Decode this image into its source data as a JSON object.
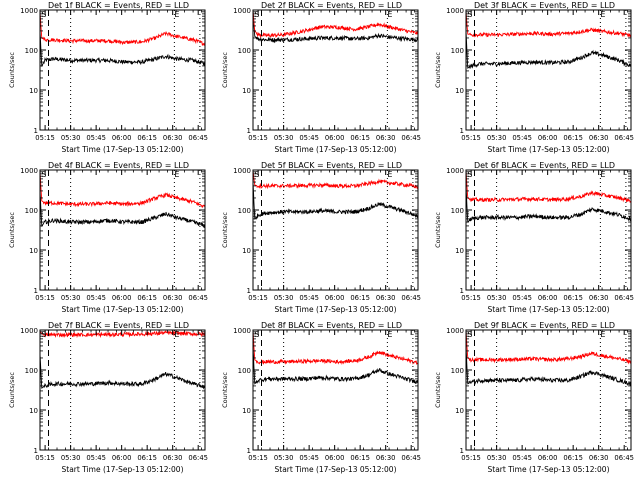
{
  "figure": {
    "common": {
      "type": "line",
      "xlabel": "Start Time (17-Sep-13 05:12:00)",
      "ylabel": "Counts/sec",
      "y_scale": "log",
      "ylim": [
        1,
        1000
      ],
      "y_ticks": [
        1,
        10,
        100,
        1000
      ],
      "y_tick_labels": [
        "1",
        "10",
        "100",
        "1000"
      ],
      "x_tick_labels": [
        "05:15",
        "05:30",
        "05:45",
        "06:00",
        "06:15",
        "06:30",
        "06:45"
      ],
      "x_minutes_ticks": [
        3,
        18,
        33,
        48,
        63,
        78,
        93
      ],
      "xlim_minutes": [
        0,
        97
      ],
      "dashed_vline_minute": 5,
      "dotted_vline_minutes": [
        18,
        79,
        94
      ],
      "marker_labels": [
        "S",
        "E"
      ],
      "marker_minutes": [
        0.8,
        79
      ],
      "colors": {
        "events": "#000000",
        "lld": "#ff0000",
        "axes": "#000000",
        "background": "#ffffff"
      }
    }
  },
  "chart_data": [
    {
      "type": "line",
      "title": "Det 1f BLACK = Events, RED = LLD",
      "xlabel": "Start Time (17-Sep-13 05:12:00)",
      "ylabel": "Counts/sec",
      "x_minutes": [
        0,
        1,
        3,
        8,
        18,
        30,
        40,
        50,
        60,
        68,
        74,
        80,
        90,
        97
      ],
      "series": [
        {
          "name": "Events",
          "color": "#000000",
          "values": [
            300,
            40,
            55,
            60,
            55,
            55,
            55,
            50,
            50,
            60,
            70,
            60,
            55,
            45
          ]
        },
        {
          "name": "LLD",
          "color": "#ff0000",
          "values": [
            900,
            200,
            180,
            180,
            170,
            170,
            170,
            155,
            160,
            200,
            260,
            220,
            180,
            140
          ]
        }
      ]
    },
    {
      "type": "line",
      "title": "Det 2f BLACK = Events, RED = LLD",
      "xlabel": "Start Time (17-Sep-13 05:12:00)",
      "ylabel": "Counts/sec",
      "x_minutes": [
        0,
        1,
        3,
        8,
        18,
        30,
        40,
        50,
        60,
        68,
        74,
        80,
        90,
        97
      ],
      "series": [
        {
          "name": "Events",
          "color": "#000000",
          "values": [
            900,
            220,
            190,
            180,
            180,
            190,
            200,
            200,
            190,
            200,
            230,
            210,
            190,
            180
          ]
        },
        {
          "name": "LLD",
          "color": "#ff0000",
          "values": [
            950,
            300,
            240,
            230,
            240,
            300,
            380,
            370,
            330,
            380,
            440,
            380,
            300,
            260
          ]
        }
      ]
    },
    {
      "type": "line",
      "title": "Det 3f BLACK = Events, RED = LLD",
      "xlabel": "Start Time (17-Sep-13 05:12:00)",
      "ylabel": "Counts/sec",
      "x_minutes": [
        0,
        1,
        3,
        8,
        18,
        30,
        40,
        50,
        60,
        68,
        74,
        80,
        90,
        97
      ],
      "series": [
        {
          "name": "Events",
          "color": "#000000",
          "values": [
            300,
            35,
            40,
            45,
            45,
            48,
            50,
            48,
            50,
            65,
            85,
            75,
            55,
            40
          ]
        },
        {
          "name": "LLD",
          "color": "#ff0000",
          "values": [
            900,
            250,
            240,
            240,
            240,
            250,
            260,
            250,
            260,
            290,
            320,
            290,
            260,
            230
          ]
        }
      ]
    },
    {
      "type": "line",
      "title": "Det 4f BLACK = Events, RED = LLD",
      "xlabel": "Start Time (17-Sep-13 05:12:00)",
      "ylabel": "Counts/sec",
      "x_minutes": [
        0,
        1,
        3,
        8,
        18,
        30,
        40,
        50,
        60,
        68,
        74,
        80,
        90,
        97
      ],
      "series": [
        {
          "name": "Events",
          "color": "#000000",
          "values": [
            300,
            40,
            50,
            55,
            50,
            50,
            55,
            50,
            50,
            65,
            80,
            65,
            50,
            40
          ]
        },
        {
          "name": "LLD",
          "color": "#ff0000",
          "values": [
            900,
            170,
            150,
            150,
            140,
            140,
            150,
            140,
            150,
            200,
            240,
            200,
            160,
            120
          ]
        }
      ]
    },
    {
      "type": "line",
      "title": "Det 5f BLACK = Events, RED = LLD",
      "xlabel": "Start Time (17-Sep-13 05:12:00)",
      "ylabel": "Counts/sec",
      "x_minutes": [
        0,
        1,
        3,
        8,
        18,
        30,
        40,
        50,
        60,
        68,
        74,
        80,
        90,
        97
      ],
      "series": [
        {
          "name": "Events",
          "color": "#000000",
          "values": [
            500,
            60,
            75,
            85,
            90,
            90,
            95,
            90,
            90,
            110,
            140,
            120,
            90,
            70
          ]
        },
        {
          "name": "LLD",
          "color": "#ff0000",
          "values": [
            950,
            420,
            400,
            400,
            400,
            410,
            420,
            400,
            400,
            460,
            520,
            480,
            420,
            380
          ]
        }
      ]
    },
    {
      "type": "line",
      "title": "Det 6f BLACK = Events, RED = LLD",
      "xlabel": "Start Time (17-Sep-13 05:12:00)",
      "ylabel": "Counts/sec",
      "x_minutes": [
        0,
        1,
        3,
        8,
        18,
        30,
        40,
        50,
        60,
        68,
        74,
        80,
        90,
        97
      ],
      "series": [
        {
          "name": "Events",
          "color": "#000000",
          "values": [
            400,
            50,
            60,
            65,
            65,
            65,
            70,
            65,
            65,
            80,
            105,
            95,
            75,
            60
          ]
        },
        {
          "name": "LLD",
          "color": "#ff0000",
          "values": [
            950,
            200,
            180,
            180,
            180,
            185,
            190,
            180,
            190,
            220,
            270,
            240,
            200,
            170
          ]
        }
      ]
    },
    {
      "type": "line",
      "title": "Det 7f BLACK = Events, RED = LLD",
      "xlabel": "Start Time (17-Sep-13 05:12:00)",
      "ylabel": "Counts/sec",
      "x_minutes": [
        0,
        1,
        3,
        8,
        18,
        30,
        40,
        50,
        60,
        68,
        74,
        80,
        90,
        97
      ],
      "series": [
        {
          "name": "Events",
          "color": "#000000",
          "values": [
            250,
            35,
            40,
            45,
            45,
            45,
            48,
            45,
            45,
            60,
            80,
            65,
            45,
            38
          ]
        },
        {
          "name": "LLD",
          "color": "#ff0000",
          "values": [
            950,
            800,
            750,
            760,
            760,
            760,
            770,
            780,
            790,
            820,
            850,
            830,
            800,
            780
          ]
        }
      ]
    },
    {
      "type": "line",
      "title": "Det 8f BLACK = Events, RED = LLD",
      "xlabel": "Start Time (17-Sep-13 05:12:00)",
      "ylabel": "Counts/sec",
      "x_minutes": [
        0,
        1,
        3,
        8,
        18,
        30,
        40,
        50,
        60,
        68,
        74,
        80,
        90,
        97
      ],
      "series": [
        {
          "name": "Events",
          "color": "#000000",
          "values": [
            400,
            45,
            55,
            60,
            60,
            60,
            65,
            60,
            60,
            75,
            100,
            80,
            60,
            50
          ]
        },
        {
          "name": "LLD",
          "color": "#ff0000",
          "values": [
            950,
            180,
            160,
            160,
            160,
            165,
            170,
            160,
            170,
            210,
            290,
            230,
            180,
            150
          ]
        }
      ]
    },
    {
      "type": "line",
      "title": "Det 9f BLACK = Events, RED = LLD",
      "xlabel": "Start Time (17-Sep-13 05:12:00)",
      "ylabel": "Counts/sec",
      "x_minutes": [
        0,
        1,
        3,
        8,
        18,
        30,
        40,
        50,
        60,
        68,
        74,
        80,
        90,
        97
      ],
      "series": [
        {
          "name": "Events",
          "color": "#000000",
          "values": [
            400,
            45,
            50,
            55,
            55,
            55,
            60,
            55,
            55,
            70,
            90,
            75,
            55,
            45
          ]
        },
        {
          "name": "LLD",
          "color": "#ff0000",
          "values": [
            950,
            200,
            180,
            180,
            180,
            185,
            190,
            180,
            190,
            220,
            260,
            230,
            190,
            160
          ]
        }
      ]
    }
  ]
}
